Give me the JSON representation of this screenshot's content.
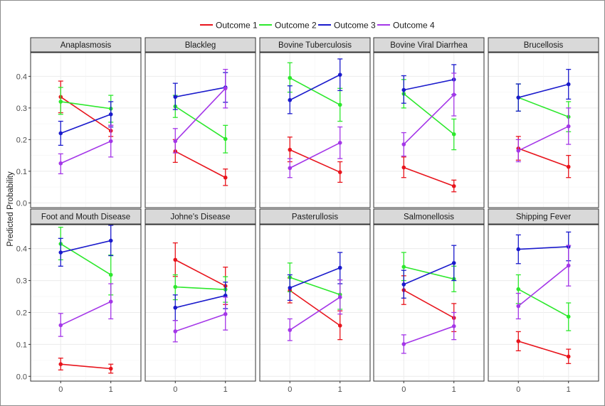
{
  "chart_data": {
    "type": "line",
    "ylabel": "Predicted Probability",
    "xlabel": "",
    "x": [
      "0",
      "1"
    ],
    "ylim": [
      -0.015,
      0.475
    ],
    "yticks": [
      "0.0",
      "0.1",
      "0.2",
      "0.3",
      "0.4"
    ],
    "yticks_values": [
      0.0,
      0.1,
      0.2,
      0.3,
      0.4
    ],
    "legend": {
      "position": "top",
      "entries": [
        "Outcome 1",
        "Outcome 2",
        "Outcome 3",
        "Outcome 4"
      ]
    },
    "colors": {
      "Outcome 1": "#e8141c",
      "Outcome 2": "#2ce82c",
      "Outcome 3": "#1a1acc",
      "Outcome 4": "#a436e8"
    },
    "panels": [
      {
        "title": "Anaplasmosis",
        "series": [
          {
            "name": "Outcome 1",
            "values": [
              0.335,
              0.228
            ],
            "lower": [
              0.285,
              0.21
            ],
            "upper": [
              0.385,
              0.245
            ]
          },
          {
            "name": "Outcome 2",
            "values": [
              0.32,
              0.298
            ],
            "lower": [
              0.28,
              0.255
            ],
            "upper": [
              0.365,
              0.34
            ]
          },
          {
            "name": "Outcome 3",
            "values": [
              0.22,
              0.28
            ],
            "lower": [
              0.182,
              0.24
            ],
            "upper": [
              0.258,
              0.32
            ]
          },
          {
            "name": "Outcome 4",
            "values": [
              0.125,
              0.195
            ],
            "lower": [
              0.092,
              0.145
            ],
            "upper": [
              0.155,
              0.245
            ]
          }
        ]
      },
      {
        "title": "Blackleg",
        "series": [
          {
            "name": "Outcome 1",
            "values": [
              0.163,
              0.08
            ],
            "lower": [
              0.128,
              0.055
            ],
            "upper": [
              0.2,
              0.107
            ]
          },
          {
            "name": "Outcome 2",
            "values": [
              0.305,
              0.202
            ],
            "lower": [
              0.27,
              0.158
            ],
            "upper": [
              0.34,
              0.245
            ]
          },
          {
            "name": "Outcome 3",
            "values": [
              0.335,
              0.365
            ],
            "lower": [
              0.295,
              0.318
            ],
            "upper": [
              0.378,
              0.412
            ]
          },
          {
            "name": "Outcome 4",
            "values": [
              0.195,
              0.362
            ],
            "lower": [
              0.158,
              0.3
            ],
            "upper": [
              0.235,
              0.422
            ]
          }
        ]
      },
      {
        "title": "Bovine Tuberculosis",
        "series": [
          {
            "name": "Outcome 1",
            "values": [
              0.168,
              0.097
            ],
            "lower": [
              0.13,
              0.065
            ],
            "upper": [
              0.208,
              0.13
            ]
          },
          {
            "name": "Outcome 2",
            "values": [
              0.395,
              0.31
            ],
            "lower": [
              0.35,
              0.258
            ],
            "upper": [
              0.443,
              0.362
            ]
          },
          {
            "name": "Outcome 3",
            "values": [
              0.325,
              0.405
            ],
            "lower": [
              0.282,
              0.355
            ],
            "upper": [
              0.37,
              0.455
            ]
          },
          {
            "name": "Outcome 4",
            "values": [
              0.11,
              0.19
            ],
            "lower": [
              0.08,
              0.14
            ],
            "upper": [
              0.14,
              0.24
            ]
          }
        ]
      },
      {
        "title": "Bovine Viral Diarrhea",
        "series": [
          {
            "name": "Outcome 1",
            "values": [
              0.112,
              0.053
            ],
            "lower": [
              0.08,
              0.035
            ],
            "upper": [
              0.145,
              0.072
            ]
          },
          {
            "name": "Outcome 2",
            "values": [
              0.345,
              0.217
            ],
            "lower": [
              0.3,
              0.168
            ],
            "upper": [
              0.39,
              0.265
            ]
          },
          {
            "name": "Outcome 3",
            "values": [
              0.357,
              0.39
            ],
            "lower": [
              0.315,
              0.342
            ],
            "upper": [
              0.402,
              0.437
            ]
          },
          {
            "name": "Outcome 4",
            "values": [
              0.185,
              0.342
            ],
            "lower": [
              0.148,
              0.275
            ],
            "upper": [
              0.222,
              0.41
            ]
          }
        ]
      },
      {
        "title": "Brucellosis",
        "series": [
          {
            "name": "Outcome 1",
            "values": [
              0.172,
              0.114
            ],
            "lower": [
              0.135,
              0.08
            ],
            "upper": [
              0.21,
              0.15
            ]
          },
          {
            "name": "Outcome 2",
            "values": [
              0.333,
              0.272
            ],
            "lower": [
              0.29,
              0.225
            ],
            "upper": [
              0.376,
              0.32
            ]
          },
          {
            "name": "Outcome 3",
            "values": [
              0.333,
              0.375
            ],
            "lower": [
              0.29,
              0.328
            ],
            "upper": [
              0.376,
              0.422
            ]
          },
          {
            "name": "Outcome 4",
            "values": [
              0.165,
              0.242
            ],
            "lower": [
              0.13,
              0.185
            ],
            "upper": [
              0.2,
              0.3
            ]
          }
        ]
      },
      {
        "title": "Foot and Mouth Disease",
        "series": [
          {
            "name": "Outcome 1",
            "values": [
              0.038,
              0.024
            ],
            "lower": [
              0.02,
              0.01
            ],
            "upper": [
              0.057,
              0.038
            ]
          },
          {
            "name": "Outcome 2",
            "values": [
              0.415,
              0.318
            ],
            "lower": [
              0.365,
              0.255
            ],
            "upper": [
              0.467,
              0.38
            ]
          },
          {
            "name": "Outcome 3",
            "values": [
              0.388,
              0.425
            ],
            "lower": [
              0.345,
              0.378
            ],
            "upper": [
              0.432,
              0.473
            ]
          },
          {
            "name": "Outcome 4",
            "values": [
              0.16,
              0.234
            ],
            "lower": [
              0.125,
              0.18
            ],
            "upper": [
              0.197,
              0.29
            ]
          }
        ]
      },
      {
        "title": "Johne's Disease",
        "series": [
          {
            "name": "Outcome 1",
            "values": [
              0.365,
              0.283
            ],
            "lower": [
              0.313,
              0.225
            ],
            "upper": [
              0.418,
              0.342
            ]
          },
          {
            "name": "Outcome 2",
            "values": [
              0.28,
              0.272
            ],
            "lower": [
              0.24,
              0.232
            ],
            "upper": [
              0.318,
              0.312
            ]
          },
          {
            "name": "Outcome 3",
            "values": [
              0.215,
              0.253
            ],
            "lower": [
              0.175,
              0.212
            ],
            "upper": [
              0.255,
              0.295
            ]
          },
          {
            "name": "Outcome 4",
            "values": [
              0.141,
              0.195
            ],
            "lower": [
              0.108,
              0.145
            ],
            "upper": [
              0.175,
              0.248
            ]
          }
        ]
      },
      {
        "title": "Pasterullosis",
        "series": [
          {
            "name": "Outcome 1",
            "values": [
              0.269,
              0.159
            ],
            "lower": [
              0.23,
              0.115
            ],
            "upper": [
              0.308,
              0.205
            ]
          },
          {
            "name": "Outcome 2",
            "values": [
              0.31,
              0.256
            ],
            "lower": [
              0.265,
              0.21
            ],
            "upper": [
              0.355,
              0.302
            ]
          },
          {
            "name": "Outcome 3",
            "values": [
              0.277,
              0.34
            ],
            "lower": [
              0.238,
              0.29
            ],
            "upper": [
              0.318,
              0.388
            ]
          },
          {
            "name": "Outcome 4",
            "values": [
              0.145,
              0.248
            ],
            "lower": [
              0.112,
              0.195
            ],
            "upper": [
              0.18,
              0.302
            ]
          }
        ]
      },
      {
        "title": "Salmonellosis",
        "series": [
          {
            "name": "Outcome 1",
            "values": [
              0.27,
              0.183
            ],
            "lower": [
              0.225,
              0.14
            ],
            "upper": [
              0.315,
              0.228
            ]
          },
          {
            "name": "Outcome 2",
            "values": [
              0.343,
              0.305
            ],
            "lower": [
              0.3,
              0.265
            ],
            "upper": [
              0.388,
              0.345
            ]
          },
          {
            "name": "Outcome 3",
            "values": [
              0.288,
              0.355
            ],
            "lower": [
              0.245,
              0.3
            ],
            "upper": [
              0.332,
              0.41
            ]
          },
          {
            "name": "Outcome 4",
            "values": [
              0.101,
              0.157
            ],
            "lower": [
              0.072,
              0.115
            ],
            "upper": [
              0.13,
              0.2
            ]
          }
        ]
      },
      {
        "title": "Shipping Fever",
        "series": [
          {
            "name": "Outcome 1",
            "values": [
              0.11,
              0.062
            ],
            "lower": [
              0.08,
              0.04
            ],
            "upper": [
              0.14,
              0.085
            ]
          },
          {
            "name": "Outcome 2",
            "values": [
              0.273,
              0.187
            ],
            "lower": [
              0.228,
              0.143
            ],
            "upper": [
              0.318,
              0.23
            ]
          },
          {
            "name": "Outcome 3",
            "values": [
              0.398,
              0.406
            ],
            "lower": [
              0.353,
              0.362
            ],
            "upper": [
              0.443,
              0.452
            ]
          },
          {
            "name": "Outcome 4",
            "values": [
              0.22,
              0.347
            ],
            "lower": [
              0.18,
              0.283
            ],
            "upper": [
              0.26,
              0.41
            ]
          }
        ]
      }
    ]
  }
}
